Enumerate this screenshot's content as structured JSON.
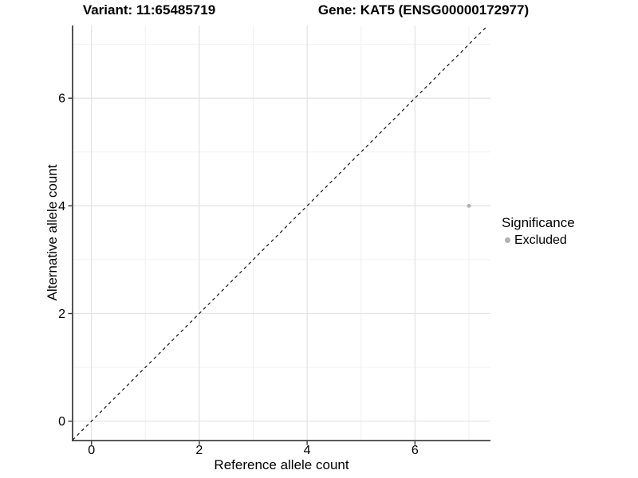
{
  "chart_data": {
    "type": "scatter",
    "titles": {
      "left": "Variant: 11:65485719",
      "right": "Gene: KAT5 (ENSG00000172977)"
    },
    "xlabel": "Reference allele count",
    "ylabel": "Alternative allele count",
    "xlim": [
      -0.35,
      7.4
    ],
    "ylim": [
      -0.36,
      7.35
    ],
    "xticks": [
      0,
      2,
      4,
      6
    ],
    "yticks": [
      0,
      2,
      4,
      6
    ],
    "minor_gridlines_x": [
      1,
      3,
      5,
      7
    ],
    "minor_gridlines_y": [
      1,
      3,
      5,
      7
    ],
    "grid": "on",
    "points": [
      {
        "x": 7,
        "y": 4,
        "series": "Excluded"
      }
    ],
    "identity_line": {
      "slope": 1,
      "intercept": 0,
      "style": "dashed"
    },
    "legend": {
      "title": "Significance",
      "position": "right",
      "entries": [
        {
          "label": "Excluded",
          "color": "#b0b0b0"
        }
      ]
    },
    "colors": {
      "point": "#b2b2b2",
      "major_grid": "#e3e3e3",
      "minor_grid": "#efefef",
      "axis_line": "#404040",
      "tick": "#333333",
      "dashed_line": "#000000",
      "text": "#000000",
      "background": "#ffffff"
    },
    "point_radius": 2.5,
    "tick_font_size": 16
  }
}
